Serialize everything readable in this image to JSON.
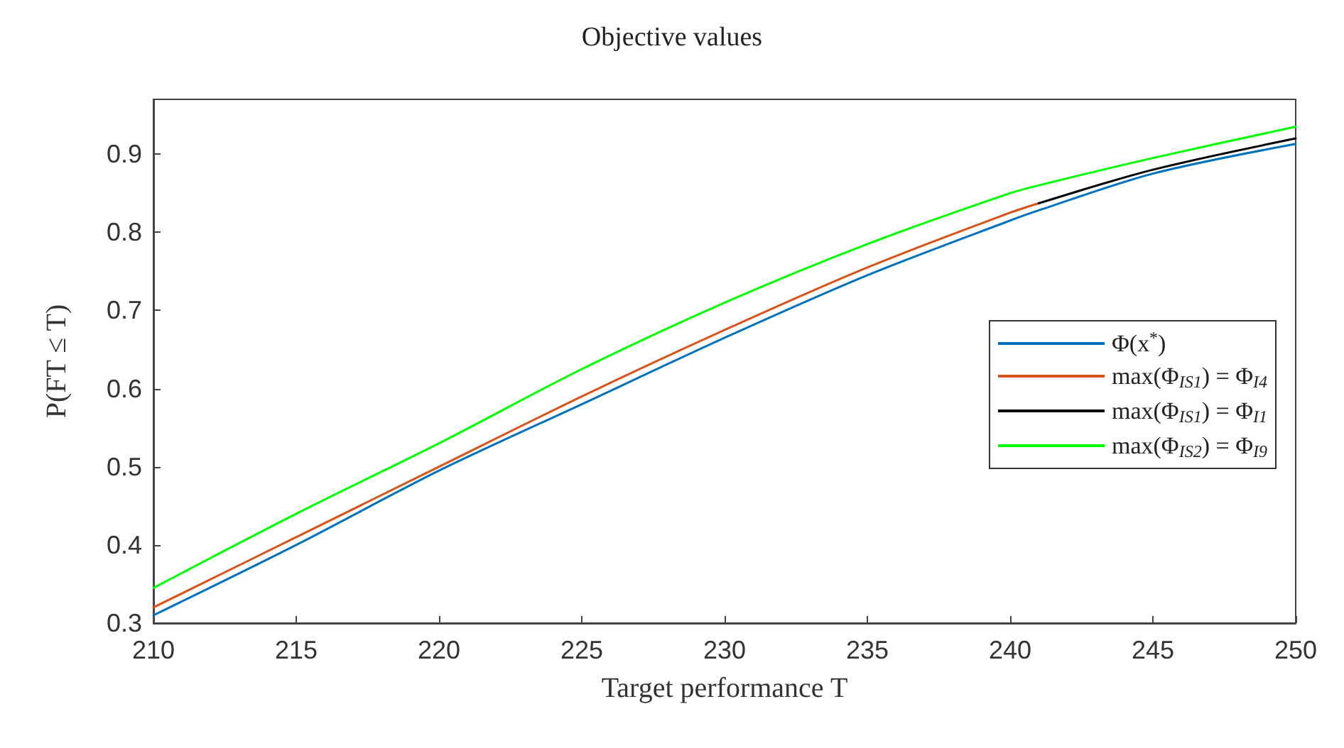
{
  "chart_data": {
    "type": "line",
    "title": "Objective values",
    "xlabel": "Target performance T",
    "ylabel": "P(FT ≤ T)",
    "x": [
      210,
      215,
      220,
      225,
      230,
      235,
      240,
      241,
      245,
      250
    ],
    "series": [
      {
        "name": "Φ(x$^{*}$)",
        "color": "#0072bd",
        "values": [
          0.31,
          0.4,
          0.495,
          0.58,
          0.665,
          0.745,
          0.815,
          0.828,
          0.875,
          0.913
        ]
      },
      {
        "name": "max(Φ$_{IS1}$) = Φ$_{I4}$",
        "color": "#d95319",
        "values": [
          0.32,
          0.41,
          0.5,
          0.59,
          0.675,
          0.755,
          0.825,
          0.837,
          null,
          null
        ]
      },
      {
        "name": "max(Φ$_{IS1}$) = Φ$_{I1}$",
        "color": "#000000",
        "values": [
          null,
          null,
          null,
          null,
          null,
          null,
          null,
          0.837,
          0.88,
          0.92
        ]
      },
      {
        "name": "max(Φ$_{IS2}$) = Φ$_{I9}$",
        "color": "#00ff00",
        "values": [
          0.345,
          0.44,
          0.53,
          0.625,
          0.71,
          0.785,
          0.85,
          0.86,
          0.895,
          0.935
        ]
      }
    ],
    "xlim": [
      210,
      250
    ],
    "xticks": [
      210,
      215,
      220,
      225,
      230,
      235,
      240,
      245,
      250
    ],
    "ylim": [
      0.3,
      0.97
    ],
    "yticks": [
      0.3,
      0.4,
      0.5,
      0.6,
      0.7,
      0.8,
      0.9
    ],
    "grid": false,
    "legend": "right",
    "marker": "none",
    "line_style": "solid"
  }
}
